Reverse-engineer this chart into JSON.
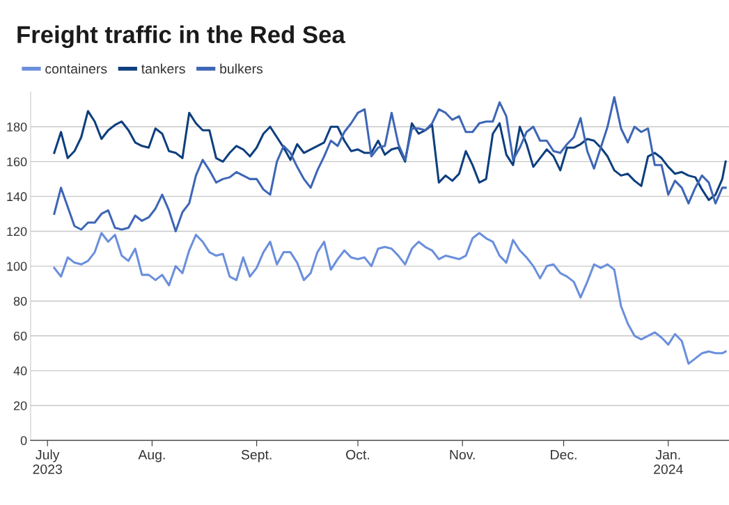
{
  "chart_data": {
    "type": "line",
    "title": "Freight traffic in the Red Sea",
    "x": [
      "2023-07-03",
      "2023-07-05",
      "2023-07-07",
      "2023-07-09",
      "2023-07-11",
      "2023-07-13",
      "2023-07-15",
      "2023-07-17",
      "2023-07-19",
      "2023-07-21",
      "2023-07-23",
      "2023-07-25",
      "2023-07-27",
      "2023-07-29",
      "2023-07-31",
      "2023-08-02",
      "2023-08-04",
      "2023-08-06",
      "2023-08-08",
      "2023-08-10",
      "2023-08-12",
      "2023-08-14",
      "2023-08-16",
      "2023-08-18",
      "2023-08-20",
      "2023-08-22",
      "2023-08-24",
      "2023-08-26",
      "2023-08-28",
      "2023-08-30",
      "2023-09-01",
      "2023-09-03",
      "2023-09-05",
      "2023-09-07",
      "2023-09-09",
      "2023-09-11",
      "2023-09-13",
      "2023-09-15",
      "2023-09-17",
      "2023-09-19",
      "2023-09-21",
      "2023-09-23",
      "2023-09-25",
      "2023-09-27",
      "2023-09-29",
      "2023-10-01",
      "2023-10-03",
      "2023-10-05",
      "2023-10-07",
      "2023-10-09",
      "2023-10-11",
      "2023-10-13",
      "2023-10-15",
      "2023-10-17",
      "2023-10-19",
      "2023-10-21",
      "2023-10-23",
      "2023-10-25",
      "2023-10-27",
      "2023-10-29",
      "2023-10-31",
      "2023-11-02",
      "2023-11-04",
      "2023-11-06",
      "2023-11-08",
      "2023-11-10",
      "2023-11-12",
      "2023-11-14",
      "2023-11-16",
      "2023-11-18",
      "2023-11-20",
      "2023-11-22",
      "2023-11-24",
      "2023-11-26",
      "2023-11-28",
      "2023-11-30",
      "2023-12-02",
      "2023-12-04",
      "2023-12-06",
      "2023-12-08",
      "2023-12-10",
      "2023-12-12",
      "2023-12-14",
      "2023-12-16",
      "2023-12-18",
      "2023-12-20",
      "2023-12-22",
      "2023-12-24",
      "2023-12-26",
      "2023-12-28",
      "2023-12-30",
      "2024-01-01",
      "2024-01-03",
      "2024-01-05",
      "2024-01-07",
      "2024-01-09",
      "2024-01-11",
      "2024-01-13",
      "2024-01-15",
      "2024-01-17",
      "2024-01-18"
    ],
    "series": [
      {
        "name": "containers",
        "color": "#6a8fdc",
        "values": [
          99,
          94,
          105,
          102,
          101,
          103,
          108,
          119,
          114,
          118,
          106,
          103,
          110,
          95,
          95,
          92,
          95,
          89,
          100,
          96,
          109,
          118,
          114,
          108,
          106,
          107,
          94,
          92,
          105,
          94,
          99,
          108,
          114,
          101,
          108,
          108,
          102,
          92,
          96,
          108,
          114,
          98,
          104,
          109,
          105,
          104,
          105,
          100,
          110,
          111,
          110,
          106,
          101,
          110,
          114,
          111,
          109,
          104,
          106,
          105,
          104,
          106,
          116,
          119,
          116,
          114,
          106,
          102,
          115,
          109,
          105,
          100,
          93,
          100,
          101,
          96,
          94,
          91,
          82,
          91,
          101,
          99,
          101,
          98,
          77,
          67,
          60,
          58,
          60,
          62,
          59,
          55,
          61,
          57,
          44,
          47,
          50,
          51,
          50,
          50,
          51
        ]
      },
      {
        "name": "tankers",
        "color": "#0e3f7e",
        "values": [
          165,
          177,
          162,
          166,
          174,
          189,
          183,
          173,
          178,
          181,
          183,
          178,
          171,
          169,
          168,
          179,
          176,
          166,
          165,
          162,
          188,
          182,
          178,
          178,
          162,
          160,
          165,
          169,
          167,
          163,
          168,
          176,
          180,
          174,
          168,
          161,
          170,
          165,
          167,
          169,
          171,
          180,
          180,
          172,
          166,
          167,
          165,
          165,
          172,
          164,
          167,
          168,
          160,
          182,
          176,
          178,
          181,
          148,
          152,
          149,
          153,
          166,
          158,
          148,
          150,
          176,
          182,
          164,
          158,
          180,
          170,
          157,
          162,
          167,
          163,
          155,
          168,
          168,
          170,
          173,
          172,
          168,
          163,
          155,
          152,
          153,
          149,
          146,
          163,
          165,
          162,
          157,
          153,
          154,
          152,
          151,
          144,
          138,
          141,
          150,
          160
        ]
      },
      {
        "name": "bulkers",
        "color": "#3e66b6",
        "values": [
          130,
          145,
          134,
          123,
          121,
          125,
          125,
          130,
          132,
          122,
          121,
          122,
          129,
          126,
          128,
          133,
          141,
          132,
          120,
          131,
          136,
          152,
          161,
          155,
          148,
          150,
          151,
          154,
          152,
          150,
          150,
          144,
          141,
          160,
          169,
          165,
          157,
          150,
          145,
          155,
          163,
          172,
          169,
          177,
          182,
          188,
          190,
          163,
          168,
          169,
          188,
          170,
          161,
          179,
          179,
          178,
          182,
          190,
          188,
          184,
          186,
          177,
          177,
          182,
          183,
          183,
          194,
          186,
          161,
          168,
          177,
          180,
          172,
          172,
          166,
          165,
          170,
          174,
          185,
          166,
          156,
          168,
          180,
          197,
          179,
          171,
          180,
          177,
          179,
          158,
          158,
          141,
          149,
          145,
          136,
          145,
          152,
          148,
          136,
          145,
          145
        ]
      }
    ],
    "xlim": [
      "2023-06-26",
      "2024-01-19"
    ],
    "xticks": [
      {
        "value": "2023-07-01",
        "label": "July\n2023"
      },
      {
        "value": "2023-08-01",
        "label": "Aug."
      },
      {
        "value": "2023-09-01",
        "label": "Sept."
      },
      {
        "value": "2023-10-01",
        "label": "Oct."
      },
      {
        "value": "2023-11-01",
        "label": "Nov."
      },
      {
        "value": "2023-12-01",
        "label": "Dec."
      },
      {
        "value": "2024-01-01",
        "label": "Jan.\n2024"
      }
    ],
    "ylim": [
      0,
      200
    ],
    "yticks": [
      0,
      20,
      40,
      60,
      80,
      100,
      120,
      140,
      160,
      180
    ],
    "grid": "y",
    "legend": "top left",
    "marker": "none",
    "line_style": "solid"
  }
}
